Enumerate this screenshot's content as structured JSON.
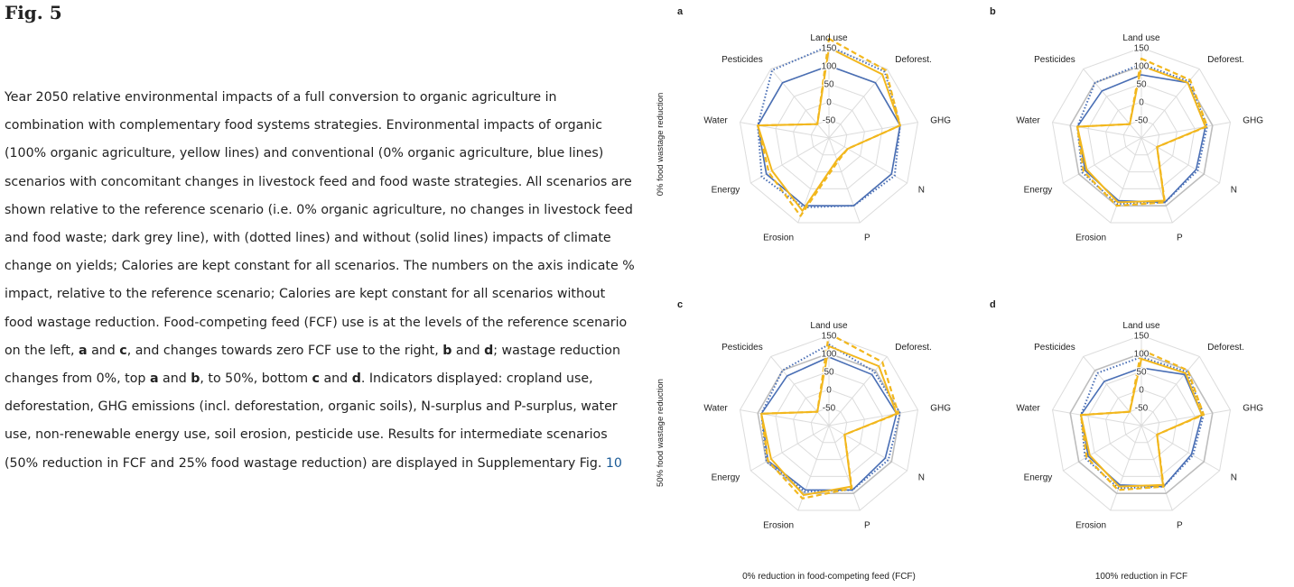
{
  "figure": {
    "title": "Fig. 5",
    "caption": [
      {
        "t": "Year 2050 relative environmental impacts of a full conversion to organic agriculture in combination with complementary food systems strategies. Environmental impacts of organic (100% organic agriculture, yellow lines) and conventional (0% organic agriculture, blue lines) scenarios with concomitant changes in livestock feed and food waste strategies. All scenarios are shown relative to the reference scenario (i.e. 0% organic agriculture, no changes in livestock feed and food waste; dark grey line), with (dotted lines) and without (solid lines) impacts of climate change on yields; Calories are kept constant for all scenarios. The numbers on the axis indicate % impact, relative to the reference scenario; Calories are kept constant for all scenarios without food wastage reduction. Food-competing feed (FCF) use is at the levels of the reference scenario on the left, "
      },
      {
        "t": "a",
        "b": true
      },
      {
        "t": " and "
      },
      {
        "t": "c",
        "b": true
      },
      {
        "t": ", and changes towards zero FCF use to the right, "
      },
      {
        "t": "b",
        "b": true
      },
      {
        "t": " and "
      },
      {
        "t": "d",
        "b": true
      },
      {
        "t": "; wastage reduction changes from 0%, top "
      },
      {
        "t": "a",
        "b": true
      },
      {
        "t": " and "
      },
      {
        "t": "b",
        "b": true
      },
      {
        "t": ", to 50%, bottom "
      },
      {
        "t": "c",
        "b": true
      },
      {
        "t": " and "
      },
      {
        "t": "d",
        "b": true
      },
      {
        "t": ". Indicators displayed: cropland use, deforestation, GHG emissions (incl. deforestation, organic soils), N-surplus and P-surplus, water use, non-renewable energy use, soil erosion, pesticide use. Results for intermediate scenarios (50% reduction in FCF and 25% food wastage reduction) are displayed in Supplementary Fig. "
      },
      {
        "t": "10",
        "link": true
      }
    ]
  },
  "chart_data": {
    "type": "radar",
    "axes": [
      "Land use",
      "Deforest.",
      "GHG",
      "N",
      "P",
      "Erosion",
      "Energy",
      "Water",
      "Pesticides"
    ],
    "tick_labels": [
      "-50",
      "0",
      "50",
      "100",
      "150"
    ],
    "rlim": [
      -100,
      150
    ],
    "row_labels": [
      "0% food wastage reduction",
      "50% food wastage reduction"
    ],
    "col_labels": [
      "0% reduction in food-competing feed (FCF)",
      "100% reduction in FCF"
    ],
    "colors": {
      "reference": "#bdbdbd",
      "grid": "#dcdcdc",
      "conventional": "#4a6fb5",
      "organic": "#f2b71d"
    },
    "panels": [
      {
        "label": "a",
        "series": [
          {
            "values": [
              100,
              100,
              100,
              100,
              100,
              100,
              100,
              100,
              100
            ],
            "style": "reference"
          },
          {
            "values": [
              100,
              100,
              100,
              100,
              100,
              100,
              100,
              100,
              100
            ],
            "style": "conventional-solid"
          },
          {
            "values": [
              155,
              140,
              100,
              110,
              100,
              105,
              115,
              100,
              145
            ],
            "style": "conventional-dotted"
          },
          {
            "values": [
              150,
              130,
              100,
              -40,
              -35,
              115,
              82,
              100,
              -50
            ],
            "style": "organic-solid"
          },
          {
            "values": [
              175,
              145,
              100,
              -40,
              -30,
              130,
              92,
              100,
              -50
            ],
            "style": "organic-dashed"
          }
        ]
      },
      {
        "label": "b",
        "series": [
          {
            "values": [
              100,
              100,
              100,
              100,
              100,
              100,
              100,
              100,
              100
            ],
            "style": "reference"
          },
          {
            "values": [
              75,
              100,
              80,
              75,
              90,
              85,
              80,
              80,
              70
            ],
            "style": "conventional-solid"
          },
          {
            "values": [
              105,
              105,
              85,
              80,
              90,
              95,
              90,
              80,
              100
            ],
            "style": "conventional-dotted"
          },
          {
            "values": [
              100,
              100,
              80,
              -50,
              85,
              90,
              75,
              80,
              -50
            ],
            "style": "organic-solid"
          },
          {
            "values": [
              120,
              110,
              85,
              -50,
              90,
              100,
              85,
              80,
              -50
            ],
            "style": "organic-dashed"
          }
        ]
      },
      {
        "label": "c",
        "series": [
          {
            "values": [
              100,
              100,
              100,
              100,
              100,
              100,
              100,
              100,
              100
            ],
            "style": "reference"
          },
          {
            "values": [
              90,
              85,
              90,
              80,
              90,
              90,
              95,
              90,
              80
            ],
            "style": "conventional-solid"
          },
          {
            "values": [
              125,
              95,
              100,
              90,
              90,
              95,
              100,
              90,
              100
            ],
            "style": "conventional-dotted"
          },
          {
            "values": [
              120,
              115,
              90,
              -50,
              80,
              105,
              85,
              90,
              -50
            ],
            "style": "organic-solid"
          },
          {
            "values": [
              155,
              130,
              95,
              -50,
              85,
              115,
              95,
              90,
              -50
            ],
            "style": "organic-dashed"
          }
        ]
      },
      {
        "label": "d",
        "series": [
          {
            "values": [
              100,
              100,
              100,
              100,
              100,
              100,
              100,
              100,
              100
            ],
            "style": "reference"
          },
          {
            "values": [
              60,
              85,
              70,
              60,
              80,
              75,
              70,
              70,
              60
            ],
            "style": "conventional-solid"
          },
          {
            "values": [
              90,
              95,
              75,
              65,
              80,
              85,
              80,
              70,
              90
            ],
            "style": "conventional-dotted"
          },
          {
            "values": [
              85,
              90,
              70,
              -50,
              75,
              80,
              65,
              70,
              -50
            ],
            "style": "organic-solid"
          },
          {
            "values": [
              110,
              100,
              75,
              -50,
              80,
              90,
              75,
              70,
              -50
            ],
            "style": "organic-dashed"
          }
        ]
      }
    ]
  }
}
